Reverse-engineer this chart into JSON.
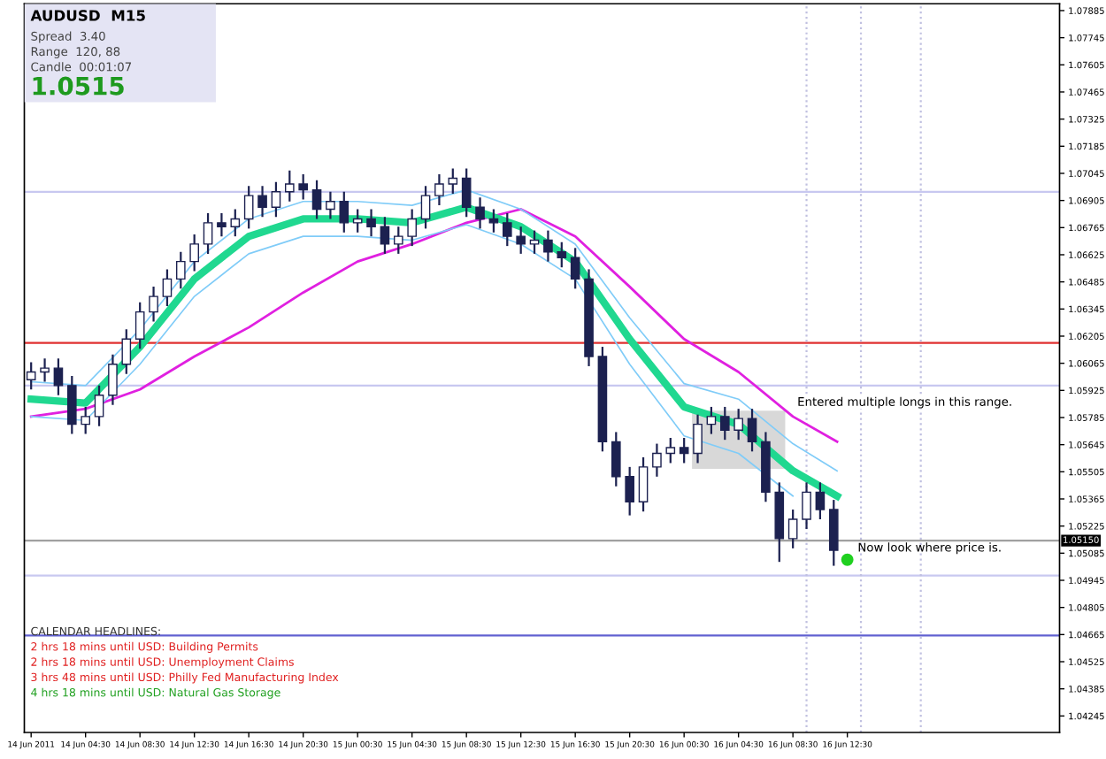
{
  "chart_data": {
    "type": "candlestick",
    "title": "AUDUSD  M15",
    "x": [
      "2011-06-14T00:30",
      "2011-06-14T01:30",
      "2011-06-14T02:30",
      "2011-06-14T03:30",
      "2011-06-14T04:30",
      "2011-06-14T05:30",
      "2011-06-14T06:30",
      "2011-06-14T07:30",
      "2011-06-14T08:30",
      "2011-06-14T09:30",
      "2011-06-14T10:30",
      "2011-06-14T11:30",
      "2011-06-14T12:30",
      "2011-06-14T13:30",
      "2011-06-14T14:30",
      "2011-06-14T15:30",
      "2011-06-14T16:30",
      "2011-06-14T17:30",
      "2011-06-14T18:30",
      "2011-06-14T19:30",
      "2011-06-14T20:30",
      "2011-06-14T21:30",
      "2011-06-14T22:30",
      "2011-06-14T23:30",
      "2011-06-15T00:30",
      "2011-06-15T01:30",
      "2011-06-15T02:30",
      "2011-06-15T03:30",
      "2011-06-15T04:30",
      "2011-06-15T05:30",
      "2011-06-15T06:30",
      "2011-06-15T07:30",
      "2011-06-15T08:30",
      "2011-06-15T09:30",
      "2011-06-15T10:30",
      "2011-06-15T11:30",
      "2011-06-15T12:30",
      "2011-06-15T13:30",
      "2011-06-15T14:30",
      "2011-06-15T15:30",
      "2011-06-15T16:30",
      "2011-06-15T17:30",
      "2011-06-15T18:30",
      "2011-06-15T19:30",
      "2011-06-15T20:30",
      "2011-06-15T21:30",
      "2011-06-15T22:30",
      "2011-06-15T23:30",
      "2011-06-16T00:30",
      "2011-06-16T01:30",
      "2011-06-16T02:30",
      "2011-06-16T03:30",
      "2011-06-16T04:30",
      "2011-06-16T05:30",
      "2011-06-16T06:30",
      "2011-06-16T07:30",
      "2011-06-16T08:30",
      "2011-06-16T09:30",
      "2011-06-16T10:30",
      "2011-06-16T11:30"
    ],
    "ohlc": [
      [
        1.0598,
        1.0607,
        1.0593,
        1.0602
      ],
      [
        1.0602,
        1.0609,
        1.0597,
        1.0604
      ],
      [
        1.0604,
        1.0609,
        1.059,
        1.0595
      ],
      [
        1.0595,
        1.06,
        1.057,
        1.0575
      ],
      [
        1.0575,
        1.0584,
        1.057,
        1.0579
      ],
      [
        1.0579,
        1.0595,
        1.0574,
        1.059
      ],
      [
        1.059,
        1.0611,
        1.0585,
        1.0606
      ],
      [
        1.0606,
        1.0624,
        1.0601,
        1.0619
      ],
      [
        1.0619,
        1.0638,
        1.0614,
        1.0633
      ],
      [
        1.0633,
        1.0646,
        1.0628,
        1.0641
      ],
      [
        1.0641,
        1.0655,
        1.0636,
        1.065
      ],
      [
        1.065,
        1.0664,
        1.0645,
        1.0659
      ],
      [
        1.0659,
        1.0673,
        1.0654,
        1.0668
      ],
      [
        1.0668,
        1.0684,
        1.0663,
        1.0679
      ],
      [
        1.0679,
        1.0684,
        1.0672,
        1.0677
      ],
      [
        1.0677,
        1.0686,
        1.0672,
        1.0681
      ],
      [
        1.0681,
        1.0698,
        1.0676,
        1.0693
      ],
      [
        1.0693,
        1.0698,
        1.0682,
        1.0687
      ],
      [
        1.0687,
        1.07,
        1.0682,
        1.0695
      ],
      [
        1.0695,
        1.0706,
        1.069,
        1.0699
      ],
      [
        1.0699,
        1.0704,
        1.0691,
        1.0696
      ],
      [
        1.0696,
        1.0701,
        1.0681,
        1.0686
      ],
      [
        1.0686,
        1.0695,
        1.0681,
        1.069
      ],
      [
        1.069,
        1.0695,
        1.0674,
        1.0679
      ],
      [
        1.0679,
        1.0686,
        1.0674,
        1.0681
      ],
      [
        1.0681,
        1.0686,
        1.0672,
        1.0677
      ],
      [
        1.0677,
        1.0682,
        1.0663,
        1.0668
      ],
      [
        1.0668,
        1.0677,
        1.0663,
        1.0672
      ],
      [
        1.0672,
        1.0686,
        1.0667,
        1.0681
      ],
      [
        1.0681,
        1.0698,
        1.0676,
        1.0693
      ],
      [
        1.0693,
        1.0704,
        1.0688,
        1.0699
      ],
      [
        1.0699,
        1.0707,
        1.0694,
        1.0702
      ],
      [
        1.0702,
        1.0707,
        1.0682,
        1.0687
      ],
      [
        1.0687,
        1.0692,
        1.0676,
        1.0681
      ],
      [
        1.0681,
        1.0686,
        1.0674,
        1.0679
      ],
      [
        1.0679,
        1.0684,
        1.0667,
        1.0672
      ],
      [
        1.0672,
        1.0677,
        1.0663,
        1.0668
      ],
      [
        1.0668,
        1.0675,
        1.0663,
        1.067
      ],
      [
        1.067,
        1.0675,
        1.0659,
        1.0664
      ],
      [
        1.0664,
        1.0669,
        1.0656,
        1.0661
      ],
      [
        1.0661,
        1.0666,
        1.0645,
        1.065
      ],
      [
        1.065,
        1.0655,
        1.0605,
        1.061
      ],
      [
        1.061,
        1.0615,
        1.0561,
        1.0566
      ],
      [
        1.0566,
        1.0571,
        1.0543,
        1.0548
      ],
      [
        1.0548,
        1.0553,
        1.0528,
        1.0535
      ],
      [
        1.0535,
        1.0558,
        1.053,
        1.0553
      ],
      [
        1.0553,
        1.0565,
        1.0548,
        1.056
      ],
      [
        1.056,
        1.0568,
        1.0555,
        1.0563
      ],
      [
        1.0563,
        1.0568,
        1.0555,
        1.056
      ],
      [
        1.056,
        1.058,
        1.0555,
        1.0575
      ],
      [
        1.0575,
        1.0584,
        1.057,
        1.0579
      ],
      [
        1.0579,
        1.0584,
        1.0567,
        1.0572
      ],
      [
        1.0572,
        1.0583,
        1.0567,
        1.0578
      ],
      [
        1.0578,
        1.0583,
        1.0561,
        1.0566
      ],
      [
        1.0566,
        1.0571,
        1.0535,
        1.054
      ],
      [
        1.054,
        1.0545,
        1.0504,
        1.0516
      ],
      [
        1.0516,
        1.0531,
        1.0511,
        1.0526
      ],
      [
        1.0526,
        1.0545,
        1.0521,
        1.054
      ],
      [
        1.054,
        1.0545,
        1.0526,
        1.0531
      ],
      [
        1.0531,
        1.0536,
        1.0502,
        1.051
      ]
    ],
    "colors": [
      "#ffffff",
      "#ffffff",
      "#1c2150",
      "#1c2150",
      "#ffffff",
      "#ffffff",
      "#ffffff",
      "#ffffff",
      "#ffffff",
      "#ffffff",
      "#ffffff",
      "#ffffff",
      "#ffffff",
      "#ffffff",
      "#1c2150",
      "#ffffff",
      "#ffffff",
      "#1c2150",
      "#ffffff",
      "#ffffff",
      "#1c2150",
      "#1c2150",
      "#ffffff",
      "#1c2150",
      "#ffffff",
      "#1c2150",
      "#1c2150",
      "#ffffff",
      "#ffffff",
      "#ffffff",
      "#ffffff",
      "#ffffff",
      "#1c2150",
      "#1c2150",
      "#1c2150",
      "#1c2150",
      "#1c2150",
      "#ffffff",
      "#1c2150",
      "#1c2150",
      "#1c2150",
      "#1c2150",
      "#1c2150",
      "#1c2150",
      "#1c2150",
      "#ffffff",
      "#ffffff",
      "#ffffff",
      "#1c2150",
      "#ffffff",
      "#ffffff",
      "#1c2150",
      "#ffffff",
      "#1c2150",
      "#1c2150",
      "#1c2150",
      "#ffffff",
      "#ffffff",
      "#1c2150",
      "#1c2150"
    ],
    "series": [
      {
        "type": "line",
        "color": "#e020e0",
        "x": [
          "2011-06-14T00:30",
          "2011-06-14T04:30",
          "2011-06-14T08:30",
          "2011-06-14T12:30",
          "2011-06-14T16:30",
          "2011-06-14T20:30",
          "2011-06-15T00:30",
          "2011-06-15T04:30",
          "2011-06-15T08:30",
          "2011-06-15T12:30",
          "2011-06-15T16:30",
          "2011-06-15T20:30",
          "2011-06-16T00:30",
          "2011-06-16T04:30",
          "2011-06-16T08:30",
          "2011-06-16T11:45"
        ],
        "values": [
          1.0579,
          1.0583,
          1.0593,
          1.061,
          1.0625,
          1.0643,
          1.0659,
          1.0668,
          1.0679,
          1.0686,
          1.0672,
          1.0646,
          1.0619,
          1.0602,
          1.0579,
          1.0566
        ]
      },
      {
        "type": "line",
        "color": "#80ccf8",
        "x": [
          "2011-06-14T00:30",
          "2011-06-14T04:30",
          "2011-06-14T08:30",
          "2011-06-14T12:30",
          "2011-06-14T16:30",
          "2011-06-14T20:30",
          "2011-06-15T00:30",
          "2011-06-15T04:30",
          "2011-06-15T08:30",
          "2011-06-15T12:30",
          "2011-06-15T16:30",
          "2011-06-15T20:30",
          "2011-06-16T00:30",
          "2011-06-16T04:30",
          "2011-06-16T08:30",
          "2011-06-16T11:45"
        ],
        "values": [
          1.0597,
          1.0595,
          1.0624,
          1.0659,
          1.0681,
          1.069,
          1.069,
          1.0688,
          1.0696,
          1.0686,
          1.0668,
          1.063,
          1.0596,
          1.0588,
          1.0565,
          1.0551
        ]
      },
      {
        "type": "line",
        "color": "#80ccf8",
        "x": [
          "2011-06-14T00:30",
          "2011-06-14T04:30",
          "2011-06-14T08:30",
          "2011-06-14T12:30",
          "2011-06-14T16:30",
          "2011-06-14T20:30",
          "2011-06-15T00:30",
          "2011-06-15T04:30",
          "2011-06-15T08:30",
          "2011-06-15T12:30",
          "2011-06-15T16:30",
          "2011-06-15T20:30",
          "2011-06-16T00:30",
          "2011-06-16T04:30",
          "2011-06-16T08:30"
        ],
        "values": [
          1.0579,
          1.0577,
          1.0606,
          1.0641,
          1.0663,
          1.0672,
          1.0672,
          1.067,
          1.0678,
          1.0668,
          1.065,
          1.0606,
          1.0569,
          1.056,
          1.0538
        ]
      },
      {
        "type": "line",
        "color": "#20d890",
        "x": [
          "2011-06-14T00:30",
          "2011-06-14T04:30",
          "2011-06-14T08:30",
          "2011-06-14T12:30",
          "2011-06-14T16:30",
          "2011-06-14T20:30",
          "2011-06-15T00:30",
          "2011-06-15T04:30",
          "2011-06-15T08:30",
          "2011-06-15T12:30",
          "2011-06-15T16:30",
          "2011-06-15T20:30",
          "2011-06-16T00:30",
          "2011-06-16T04:30",
          "2011-06-16T08:30",
          "2011-06-16T11:45"
        ],
        "values": [
          1.0588,
          1.0586,
          1.0615,
          1.065,
          1.0672,
          1.0681,
          1.0681,
          1.0679,
          1.0687,
          1.0677,
          1.0659,
          1.0619,
          1.0584,
          1.0575,
          1.0551,
          1.0538
        ]
      }
    ],
    "xlim": [
      "2011-06-14T00:00",
      "2011-06-17T04:06"
    ],
    "xticks": [
      {
        "value": "2011-06-14T00:30",
        "label": "14 Jun 2011"
      },
      {
        "value": "2011-06-14T04:30",
        "label": "14 Jun 04:30"
      },
      {
        "value": "2011-06-14T08:30",
        "label": "14 Jun 08:30"
      },
      {
        "value": "2011-06-14T12:30",
        "label": "14 Jun 12:30"
      },
      {
        "value": "2011-06-14T16:30",
        "label": "14 Jun 16:30"
      },
      {
        "value": "2011-06-14T20:30",
        "label": "14 Jun 20:30"
      },
      {
        "value": "2011-06-15T00:30",
        "label": "15 Jun 00:30"
      },
      {
        "value": "2011-06-15T04:30",
        "label": "15 Jun 04:30"
      },
      {
        "value": "2011-06-15T08:30",
        "label": "15 Jun 08:30"
      },
      {
        "value": "2011-06-15T12:30",
        "label": "15 Jun 12:30"
      },
      {
        "value": "2011-06-15T16:30",
        "label": "15 Jun 16:30"
      },
      {
        "value": "2011-06-15T20:30",
        "label": "15 Jun 20:30"
      },
      {
        "value": "2011-06-16T00:30",
        "label": "16 Jun 00:30"
      },
      {
        "value": "2011-06-16T04:30",
        "label": "16 Jun 04:30"
      },
      {
        "value": "2011-06-16T08:30",
        "label": "16 Jun 08:30"
      },
      {
        "value": "2011-06-16T12:30",
        "label": "16 Jun 12:30"
      }
    ],
    "ylim": [
      1.0416,
      1.0792
    ],
    "yticks": [
      1.07885,
      1.07745,
      1.07605,
      1.07465,
      1.07325,
      1.07185,
      1.07045,
      1.06905,
      1.06765,
      1.06625,
      1.06485,
      1.06345,
      1.06205,
      1.06065,
      1.05925,
      1.05785,
      1.05645,
      1.05505,
      1.05365,
      1.05225,
      1.05085,
      1.04945,
      1.04805,
      1.04665,
      1.04525,
      1.04385,
      1.04245
    ],
    "ref_lines": [
      {
        "axis": "y",
        "value": 1.0695,
        "color": "#c8c8f0"
      },
      {
        "axis": "y",
        "value": 1.0595,
        "color": "#c8c8f0"
      },
      {
        "axis": "y",
        "value": 1.0497,
        "color": "#c8c8f0"
      },
      {
        "axis": "y",
        "value": 1.0617,
        "color": "#e03030"
      },
      {
        "axis": "y",
        "value": 1.0466,
        "color": "#6060d0"
      },
      {
        "axis": "y",
        "value": 1.0515,
        "label": "1.05150",
        "color": "#a0a0a0"
      },
      {
        "axis": "x",
        "value": "2011-06-16T09:30",
        "color": "#c0c0e0",
        "line_style": "dotted"
      },
      {
        "axis": "x",
        "value": "2011-06-16T13:30",
        "color": "#c0c0e0",
        "line_style": "dotted"
      },
      {
        "axis": "x",
        "value": "2011-06-16T17:54",
        "color": "#c0c0e0",
        "line_style": "dotted"
      }
    ],
    "bands": [
      {
        "axis": "y",
        "from": 1.0552,
        "to": 1.0582,
        "color": "#d8d8d8"
      }
    ],
    "annotations": [
      "Spread  3.40",
      "Range  120, 88",
      "Candle  00:01:07",
      "1.0515",
      "CALENDAR HEADLINES:",
      "2 hrs 18 mins until USD: Building Permits",
      "2 hrs 18 mins until USD: Unemployment Claims",
      "3 hrs 48 mins until USD: Philly Fed Manufacturing Index",
      "4 hrs 18 mins until USD: Natural Gas Storage",
      "Now look where price is.",
      {
        "text": "Entered multiple longs in this range.",
        "x": "2011-06-16T08:06",
        "y": 1.0582
      }
    ],
    "grid": false,
    "legend": false
  }
}
